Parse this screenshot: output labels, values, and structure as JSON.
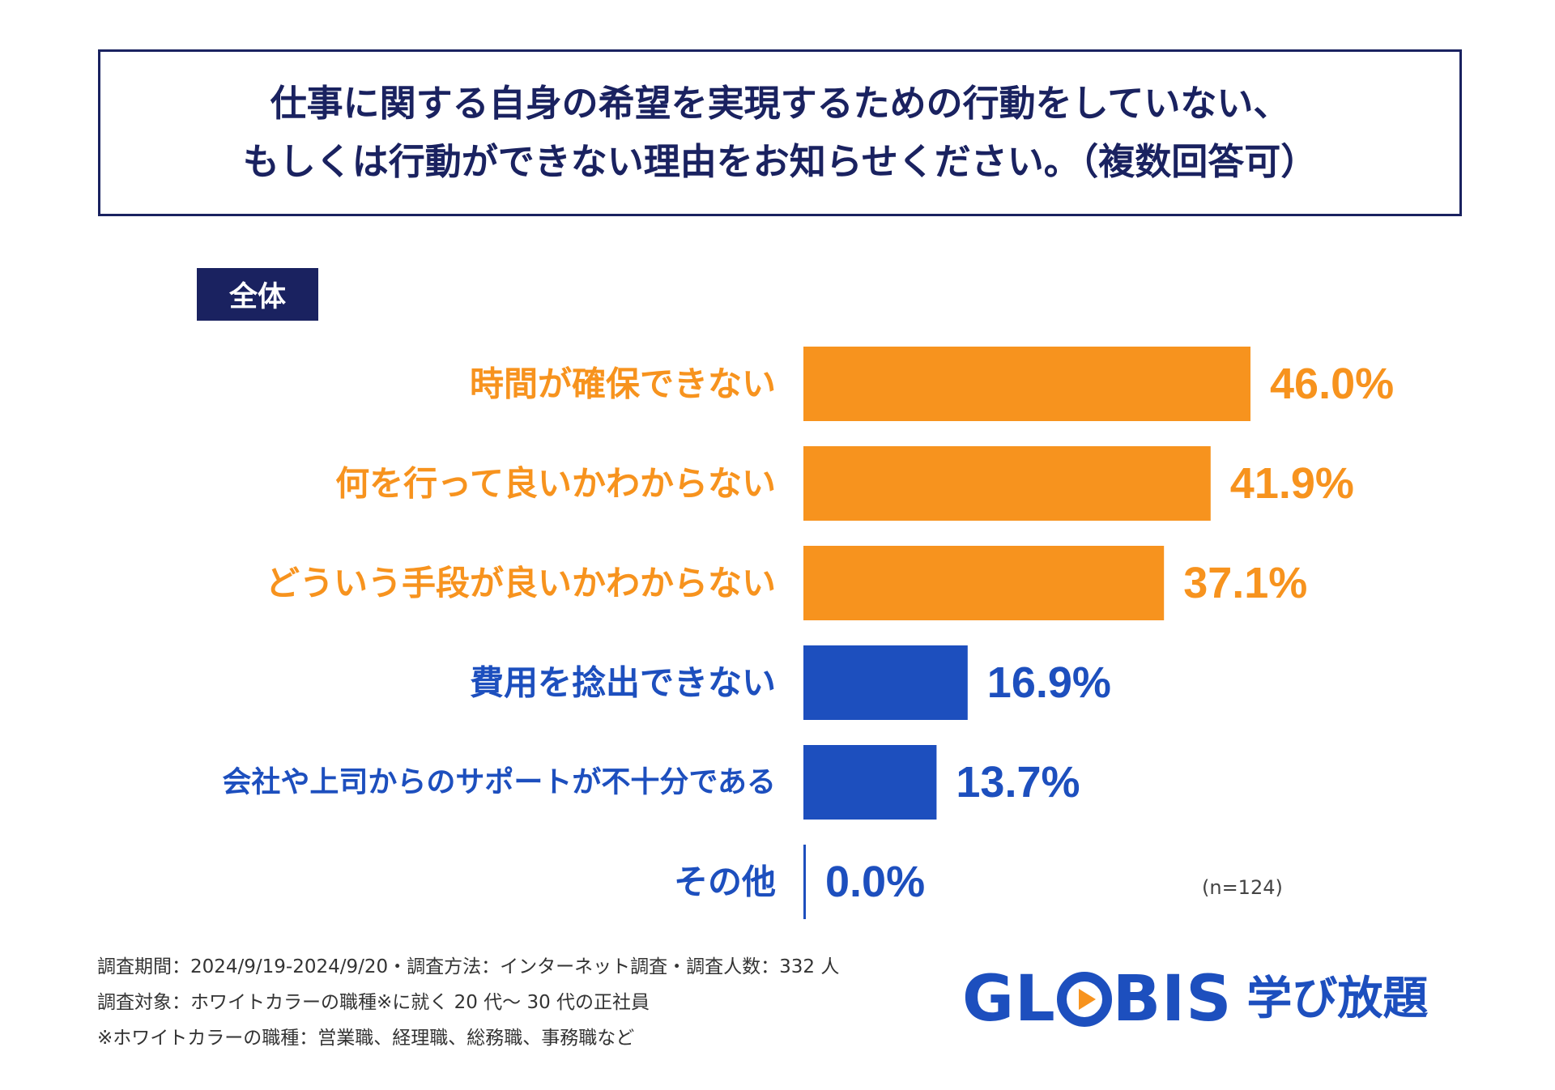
{
  "title": {
    "line1": "仕事に関する自身の希望を実現するための行動をしていない、",
    "line2": "もしくは行動ができない理由をお知らせください。（複数回答可）"
  },
  "group_label": "全体",
  "sample_note": "(n=124)",
  "footnotes": [
    "調査期間：2024/9/19-2024/9/20・調査方法：インターネット調査・調査人数：332 人",
    "調査対象：ホワイトカラーの職種※に就く 20 代〜 30 代の正社員",
    "※ホワイトカラーの職種：営業職、経理職、総務職、事務職など"
  ],
  "logo": {
    "word_pre": "GL",
    "word_post": "BIS",
    "sub": "学び放題"
  },
  "colors": {
    "orange": "#f7931e",
    "blue": "#1d4fbe",
    "navy": "#1a2260"
  },
  "chart_data": {
    "type": "bar",
    "orientation": "horizontal",
    "categories": [
      "時間が確保できない",
      "何を行って良いかわからない",
      "どういう手段が良いかわからない",
      "費用を捻出できない",
      "会社や上司からのサポートが不十分である",
      "その他"
    ],
    "values": [
      46.0,
      41.9,
      37.1,
      16.9,
      13.7,
      0.0
    ],
    "value_labels": [
      "46.0%",
      "41.9%",
      "37.1%",
      "16.9%",
      "13.7%",
      "0.0%"
    ],
    "bar_colors": [
      "#f7931e",
      "#f7931e",
      "#f7931e",
      "#1d4fbe",
      "#1d4fbe",
      "#1d4fbe"
    ],
    "xlim": [
      0,
      100
    ],
    "grid": false,
    "legend": "none"
  }
}
